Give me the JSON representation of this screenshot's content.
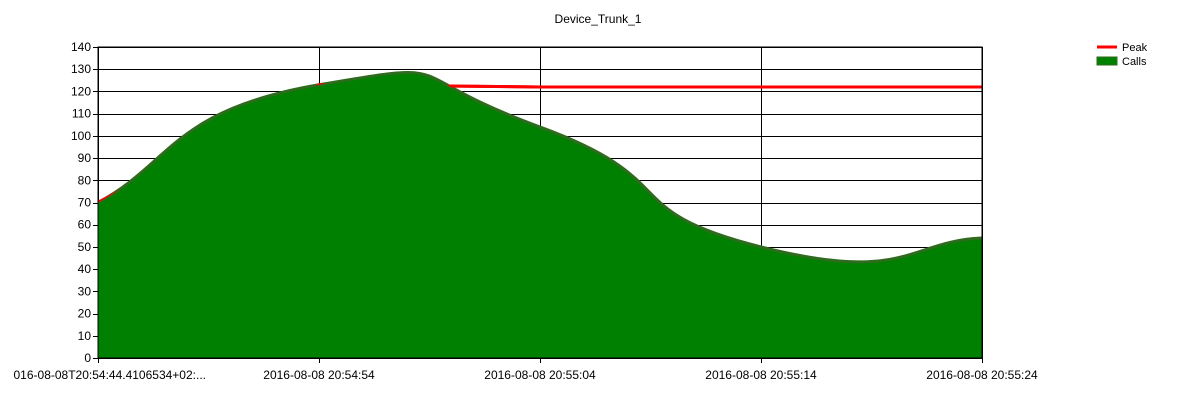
{
  "chart_data": {
    "type": "area",
    "title": "Device_Trunk_1",
    "xlabel": "",
    "ylabel": "",
    "ylim": [
      0,
      140
    ],
    "y_ticks": [
      0,
      10,
      20,
      30,
      40,
      50,
      60,
      70,
      80,
      90,
      100,
      110,
      120,
      130,
      140
    ],
    "x_tick_labels": [
      "016-08-08T20:54:44.4106534+02:...",
      "2016-08-08 20:54:54",
      "2016-08-08 20:55:04",
      "2016-08-08 20:55:14",
      "2016-08-08 20:55:24"
    ],
    "grid": true,
    "legend_position": "top-right",
    "series": [
      {
        "name": "Peak",
        "type": "line",
        "color": "#ff0000",
        "values": [
          70,
          123,
          122,
          122,
          122
        ]
      },
      {
        "name": "Calls",
        "type": "area",
        "smooth": true,
        "color": "#008000",
        "edge_color": "#2e6b1e",
        "values": [
          70,
          123,
          104,
          50,
          54
        ]
      }
    ]
  }
}
